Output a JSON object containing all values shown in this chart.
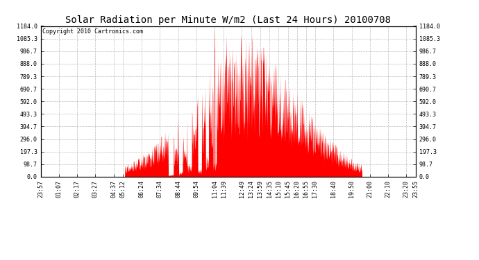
{
  "title": "Solar Radiation per Minute W/m2 (Last 24 Hours) 20100708",
  "copyright_text": "Copyright 2010 Cartronics.com",
  "background_color": "#ffffff",
  "bar_color": "#ff0000",
  "grid_color": "#aaaaaa",
  "ytick_labels": [
    "0.0",
    "98.7",
    "197.3",
    "296.0",
    "394.7",
    "493.3",
    "592.0",
    "690.7",
    "789.3",
    "888.0",
    "986.7",
    "1085.3",
    "1184.0"
  ],
  "ytick_values": [
    0.0,
    98.7,
    197.3,
    296.0,
    394.7,
    493.3,
    592.0,
    690.7,
    789.3,
    888.0,
    986.7,
    1085.3,
    1184.0
  ],
  "ymax": 1184.0,
  "ymin": 0.0,
  "xtick_labels": [
    "23:57",
    "01:07",
    "02:17",
    "03:27",
    "04:37",
    "05:12",
    "06:24",
    "07:34",
    "08:44",
    "09:54",
    "11:04",
    "11:39",
    "12:49",
    "13:24",
    "13:59",
    "14:35",
    "15:10",
    "15:45",
    "16:20",
    "16:55",
    "17:30",
    "18:40",
    "19:50",
    "21:00",
    "22:10",
    "23:20",
    "23:55"
  ],
  "title_fontsize": 10,
  "copyright_fontsize": 6,
  "tick_fontsize": 6,
  "figwidth": 6.9,
  "figheight": 3.75,
  "dpi": 100
}
